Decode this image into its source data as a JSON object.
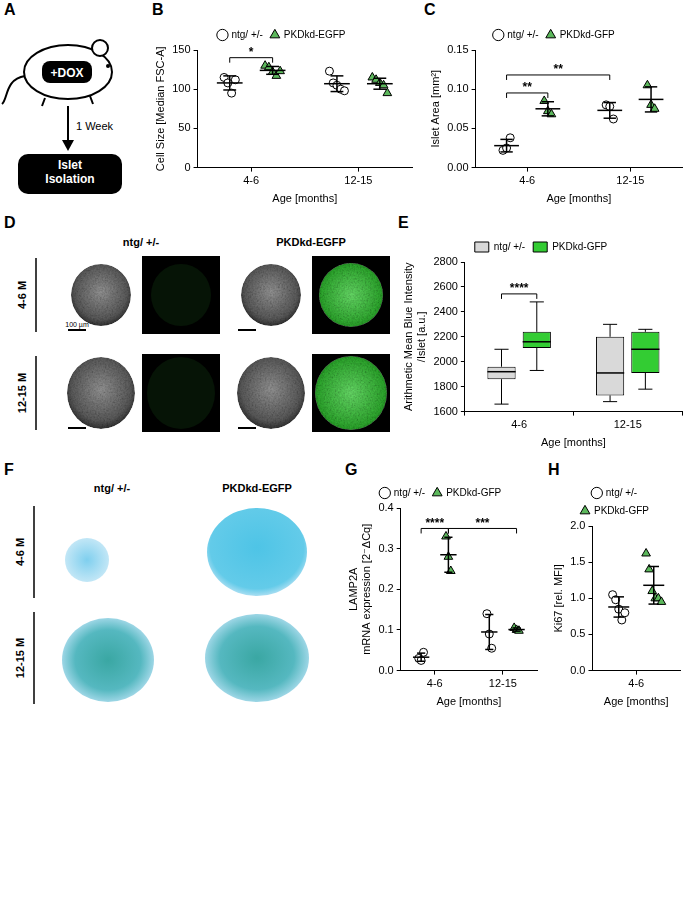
{
  "diagram": {
    "panel": "A",
    "treatment": "+DOX",
    "duration": "1 Week",
    "endpoint": "Islet Isolation"
  },
  "chart_data": [
    {
      "panel": "B",
      "type": "scatter",
      "ylabel": "Cell Size [Median FSC-A]",
      "xlabel": "Age [months]",
      "categories": [
        "4-6",
        "12-15"
      ],
      "ylim": [
        0,
        150
      ],
      "yticks": [
        0,
        50,
        100,
        150
      ],
      "grid": false,
      "legend": "top",
      "series": [
        {
          "name": "ntg/ +/-",
          "color": "#ffffff",
          "marker": "circle",
          "values": [
            [
              115,
              108,
              95,
              112
            ],
            [
              123,
              108,
              105,
              100,
              98
            ]
          ],
          "means": [
            108,
            107
          ],
          "errors": [
            9,
            10
          ]
        },
        {
          "name": "PKDkd-EGFP",
          "color": "#5cb85c",
          "marker": "triangle",
          "values": [
            [
              130,
              128,
              122,
              117,
              123
            ],
            [
              115,
              112,
              108,
              105,
              95
            ]
          ],
          "means": [
            124,
            107
          ],
          "errors": [
            5,
            7
          ]
        }
      ],
      "significance": [
        {
          "label": "*",
          "from": [
            "ntg/ +/-",
            "4-6"
          ],
          "to": [
            "PKDkd-EGFP",
            "4-6"
          ]
        }
      ]
    },
    {
      "panel": "C",
      "type": "scatter",
      "ylabel": "Islet Area [mm²]",
      "xlabel": "Age [months]",
      "categories": [
        "4-6",
        "12-15"
      ],
      "ylim": [
        0,
        0.15
      ],
      "yticks": [
        {
          "value": 0,
          "label": "0.00"
        },
        {
          "value": 0.05,
          "label": "0.05"
        },
        {
          "value": 0.1,
          "label": "0.10"
        },
        {
          "value": 0.15,
          "label": "0.15"
        }
      ],
      "grid": false,
      "legend": "top",
      "series": [
        {
          "name": "ntg/ +/-",
          "color": "#ffffff",
          "marker": "circle",
          "values": [
            [
              0.022,
              0.025,
              0.038
            ],
            [
              0.08,
              0.078,
              0.062
            ]
          ],
          "means": [
            0.028,
            0.073
          ],
          "errors": [
            0.008,
            0.01
          ]
        },
        {
          "name": "PKDkd-GFP",
          "color": "#5cb85c",
          "marker": "triangle",
          "values": [
            [
              0.085,
              0.072,
              0.068
            ],
            [
              0.105,
              0.08,
              0.075
            ]
          ],
          "means": [
            0.075,
            0.087
          ],
          "errors": [
            0.009,
            0.016
          ]
        }
      ],
      "significance": [
        {
          "label": "**",
          "from": [
            "ntg/ +/-",
            "4-6"
          ],
          "to": [
            "PKDkd-GFP",
            "4-6"
          ]
        },
        {
          "label": "**",
          "from": [
            "ntg/ +/-",
            "4-6"
          ],
          "to": [
            "ntg/ +/-",
            "12-15"
          ]
        }
      ]
    },
    {
      "panel": "E",
      "type": "box",
      "ylabel": [
        "Arithmetic Mean Blue Intensity",
        "/Islet [a.u.]"
      ],
      "xlabel": "Age [months]",
      "categories": [
        "4-6",
        "12-15"
      ],
      "ylim": [
        1600,
        2800
      ],
      "yticks": [
        1600,
        1800,
        2000,
        2200,
        2400,
        2600,
        2800
      ],
      "grid": false,
      "legend": "top",
      "series": [
        {
          "name": "ntg/ +/-",
          "color": "#d9d9d9",
          "min": [
            1660,
            1680
          ],
          "q1": [
            1860,
            1730
          ],
          "median": [
            1920,
            1910
          ],
          "q3": [
            1960,
            2200
          ],
          "max": [
            2100,
            2300
          ]
        },
        {
          "name": "PKDkd-GFP",
          "color": "#33cc33",
          "min": [
            1930,
            1780
          ],
          "q1": [
            2110,
            1910
          ],
          "median": [
            2160,
            2100
          ],
          "q3": [
            2240,
            2240
          ],
          "max": [
            2480,
            2260
          ]
        }
      ],
      "significance": [
        {
          "label": "****",
          "from": [
            "ntg/ +/-",
            "4-6"
          ],
          "to": [
            "PKDkd-GFP",
            "4-6"
          ]
        }
      ]
    },
    {
      "panel": "G",
      "type": "scatter",
      "ylabel": [
        "LAMP2A",
        "mRNA expression [2⁻ΔCq]"
      ],
      "xlabel": "Age [months]",
      "categories": [
        "4-6",
        "12-15"
      ],
      "ylim": [
        0,
        0.4
      ],
      "yticks": [
        {
          "value": 0,
          "label": "0.0"
        },
        {
          "value": 0.1,
          "label": "0.1"
        },
        {
          "value": 0.2,
          "label": "0.2"
        },
        {
          "value": 0.3,
          "label": "0.3"
        },
        {
          "value": 0.4,
          "label": "0.4"
        }
      ],
      "grid": false,
      "legend": "top",
      "series": [
        {
          "name": "ntg/ +/-",
          "color": "#ffffff",
          "marker": "circle",
          "values": [
            [
              0.03,
              0.025,
              0.045
            ],
            [
              0.14,
              0.09,
              0.055
            ]
          ],
          "means": [
            0.033,
            0.095
          ],
          "errors": [
            0.01,
            0.043
          ]
        },
        {
          "name": "PKDkd-GFP",
          "color": "#5cb85c",
          "marker": "triangle",
          "values": [
            [
              0.33,
              0.28,
              0.245
            ],
            [
              0.105,
              0.1,
              0.098
            ]
          ],
          "means": [
            0.285,
            0.101
          ],
          "errors": [
            0.043,
            0.004
          ]
        }
      ],
      "significance": [
        {
          "label": "****",
          "from": [
            "ntg/ +/-",
            "4-6"
          ],
          "to": [
            "PKDkd-GFP",
            "4-6"
          ]
        },
        {
          "label": "***",
          "from": [
            "PKDkd-GFP",
            "4-6"
          ],
          "to": [
            "PKDkd-GFP",
            "12-15"
          ]
        }
      ]
    },
    {
      "panel": "H",
      "type": "scatter",
      "ylabel": "Ki67 [rel. MFI]",
      "xlabel": "Age [months]",
      "categories": [
        "4-6"
      ],
      "ylim": [
        0,
        2
      ],
      "yticks": [
        {
          "value": 0,
          "label": "0.0"
        },
        {
          "value": 0.5,
          "label": "0.5"
        },
        {
          "value": 1,
          "label": "1.0"
        },
        {
          "value": 1.5,
          "label": "1.5"
        },
        {
          "value": 2,
          "label": "2.0"
        }
      ],
      "grid": false,
      "legend": "top",
      "series": [
        {
          "name": "ntg/ +/-",
          "color": "#ffffff",
          "marker": "circle",
          "values": [
            [
              1.05,
              0.98,
              0.85,
              0.7,
              0.8
            ]
          ],
          "means": [
            0.88
          ],
          "errors": [
            0.14
          ]
        },
        {
          "name": "PKDkd-GFP",
          "color": "#5cb85c",
          "marker": "triangle",
          "values": [
            [
              1.62,
              1.4,
              1.1,
              1.0,
              1.0,
              0.95
            ]
          ],
          "means": [
            1.18
          ],
          "errors": [
            0.26
          ]
        }
      ]
    }
  ],
  "images": [
    {
      "panel": "D",
      "columns": [
        "ntg/ +/-",
        "PKDkd-EGFP"
      ],
      "rows": [
        "4-6 M",
        "12-15 M"
      ],
      "scale_bar": "100 µm"
    },
    {
      "panel": "F",
      "columns": [
        "ntg/ +/-",
        "PKDkd-EGFP"
      ],
      "rows": [
        "4-6 M",
        "12-15 M"
      ]
    }
  ]
}
